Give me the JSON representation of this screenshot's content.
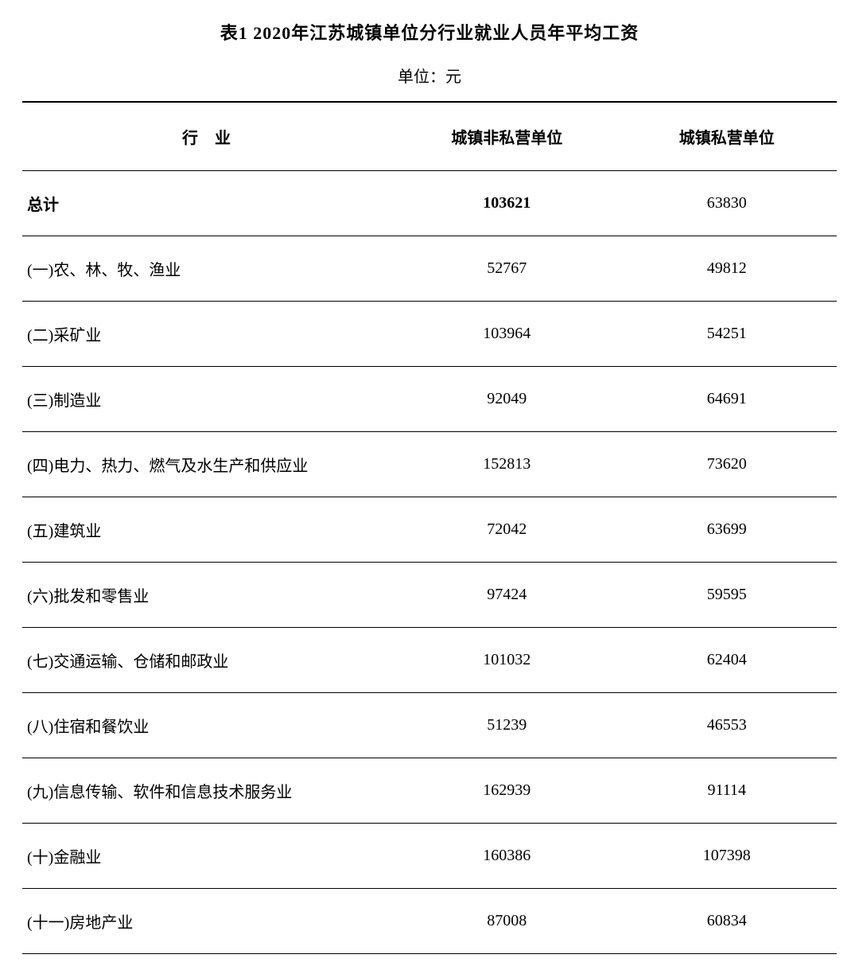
{
  "title": "表1  2020年江苏城镇单位分行业就业人员年平均工资",
  "unit": "单位：元",
  "table": {
    "columns": [
      "行 业",
      "城镇非私营单位",
      "城镇私营单位"
    ],
    "column_widths": [
      "46%",
      "27%",
      "27%"
    ],
    "column_alignments": [
      "left",
      "center",
      "center"
    ],
    "header_fontsize": 20,
    "header_fontweight": "bold",
    "cell_fontsize": 20,
    "border_top_width": 2,
    "border_bottom_width": 1,
    "border_color": "#000000",
    "row_padding_vertical": 26,
    "rows": [
      {
        "industry": "总计",
        "non_private": "103621",
        "private": "63830",
        "is_total": true
      },
      {
        "industry": "(一)农、林、牧、渔业",
        "non_private": "52767",
        "private": "49812",
        "is_total": false
      },
      {
        "industry": "(二)采矿业",
        "non_private": "103964",
        "private": "54251",
        "is_total": false
      },
      {
        "industry": "(三)制造业",
        "non_private": "92049",
        "private": "64691",
        "is_total": false
      },
      {
        "industry": "(四)电力、热力、燃气及水生产和供应业",
        "non_private": "152813",
        "private": "73620",
        "is_total": false
      },
      {
        "industry": "(五)建筑业",
        "non_private": "72042",
        "private": "63699",
        "is_total": false
      },
      {
        "industry": "(六)批发和零售业",
        "non_private": "97424",
        "private": "59595",
        "is_total": false
      },
      {
        "industry": "(七)交通运输、仓储和邮政业",
        "non_private": "101032",
        "private": "62404",
        "is_total": false
      },
      {
        "industry": "(八)住宿和餐饮业",
        "non_private": "51239",
        "private": "46553",
        "is_total": false
      },
      {
        "industry": "(九)信息传输、软件和信息技术服务业",
        "non_private": "162939",
        "private": "91114",
        "is_total": false
      },
      {
        "industry": "(十)金融业",
        "non_private": "160386",
        "private": "107398",
        "is_total": false
      },
      {
        "industry": "(十一)房地产业",
        "non_private": "87008",
        "private": "60834",
        "is_total": false
      }
    ]
  },
  "title_fontsize": 22,
  "title_fontweight": "bold",
  "unit_fontsize": 20,
  "background_color": "#ffffff",
  "text_color": "#000000",
  "font_family": "SimSun"
}
